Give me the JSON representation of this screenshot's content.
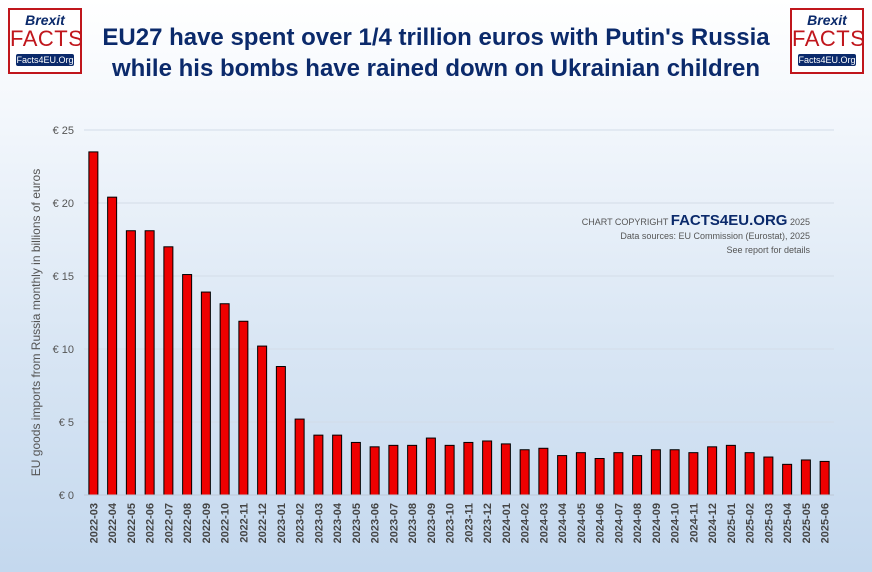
{
  "header": {
    "title_line1": "EU27 have spent over 1/4 trillion euros with Putin's Russia",
    "title_line2": "while his bombs have rained down on Ukrainian children"
  },
  "logo": {
    "line1": "Brexit",
    "line2": "FACTS",
    "line3": "Facts4EU.Org"
  },
  "copyright": {
    "prefix": "CHART COPYRIGHT",
    "brand": "FACTS4EU.ORG",
    "year": "2025",
    "source": "Data sources: EU Commission (Eurostat), 2025",
    "note": "See report for details"
  },
  "colors": {
    "bar_fill": "#ee0000",
    "bar_stroke": "#000000",
    "title": "#0b2a6b",
    "logo_red": "#c0161c"
  },
  "chart_data": {
    "type": "bar",
    "ylabel": "EU goods imports from Russia monthly in billions of euros",
    "xlabel": "",
    "ylim": [
      0,
      25
    ],
    "yticks": [
      0,
      5,
      10,
      15,
      20,
      25
    ],
    "ytick_labels": [
      "€ 0",
      "€ 5",
      "€ 10",
      "€ 15",
      "€ 20",
      "€ 25"
    ],
    "grid": true,
    "categories": [
      "2022-03",
      "2022-04",
      "2022-05",
      "2022-06",
      "2022-07",
      "2022-08",
      "2022-09",
      "2022-10",
      "2022-11",
      "2022-12",
      "2023-01",
      "2023-02",
      "2023-03",
      "2023-04",
      "2023-05",
      "2023-06",
      "2023-07",
      "2023-08",
      "2023-09",
      "2023-10",
      "2023-11",
      "2023-12",
      "2024-01",
      "2024-02",
      "2024-03",
      "2024-04",
      "2024-05",
      "2024-06",
      "2024-07",
      "2024-08",
      "2024-09",
      "2024-10",
      "2024-11",
      "2024-12",
      "2025-01",
      "2025-02",
      "2025-03",
      "2025-04",
      "2025-05",
      "2025-06"
    ],
    "values": [
      23.5,
      20.4,
      18.1,
      18.1,
      17.0,
      15.1,
      13.9,
      13.1,
      11.9,
      10.2,
      8.8,
      5.2,
      4.1,
      4.1,
      3.6,
      3.3,
      3.4,
      3.4,
      3.9,
      3.4,
      3.6,
      3.7,
      3.5,
      3.1,
      3.2,
      2.7,
      2.9,
      2.5,
      2.9,
      2.7,
      3.1,
      3.1,
      2.9,
      3.3,
      3.4,
      2.9,
      2.6,
      2.1,
      2.4,
      2.3
    ]
  }
}
